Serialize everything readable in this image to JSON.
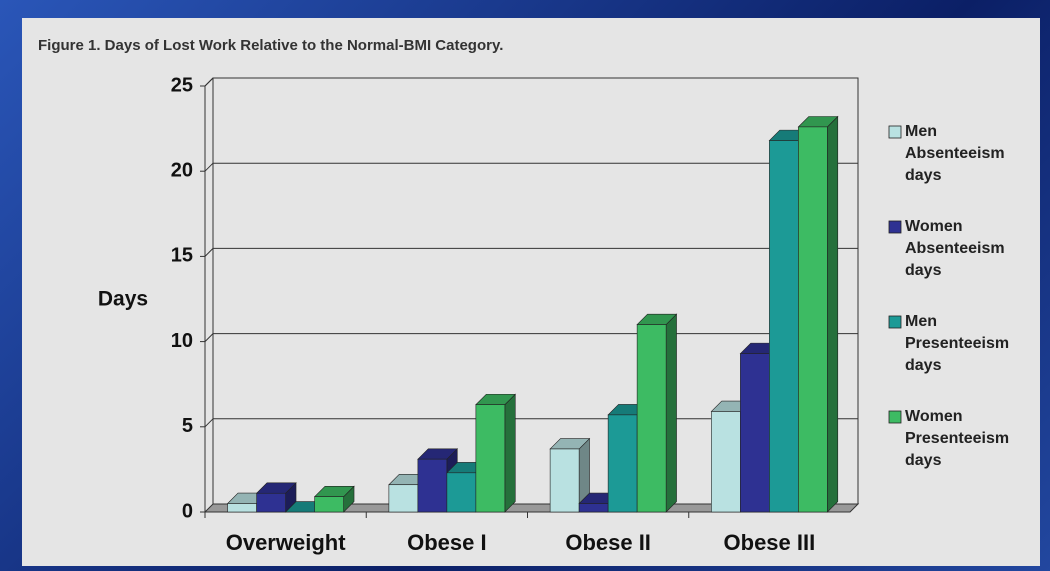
{
  "chart_data": {
    "type": "bar3d",
    "title": "Figure 1. Days of Lost Work Relative to the Normal-BMI Category.",
    "ylabel": "Days",
    "categories": [
      "Overweight",
      "Obese I",
      "Obese II",
      "Obese III"
    ],
    "series": [
      {
        "name": "Men Absenteeism days",
        "color": "#b9e1e1",
        "values": [
          0.5,
          1.6,
          3.7,
          5.9
        ]
      },
      {
        "name": "Women Absenteeism days",
        "color": "#2e3192",
        "values": [
          1.1,
          3.1,
          0.5,
          9.3
        ]
      },
      {
        "name": "Men Presenteeism days",
        "color": "#1c9a96",
        "values": [
          0,
          2.3,
          5.7,
          21.8
        ]
      },
      {
        "name": "Women Presenteeism days",
        "color": "#3dbb63",
        "values": [
          0.9,
          6.3,
          11,
          22.6
        ]
      }
    ],
    "ylim": [
      0,
      25
    ],
    "yticks": [
      0,
      5,
      10,
      15,
      20,
      25
    ],
    "grid": true,
    "legend": "right"
  }
}
